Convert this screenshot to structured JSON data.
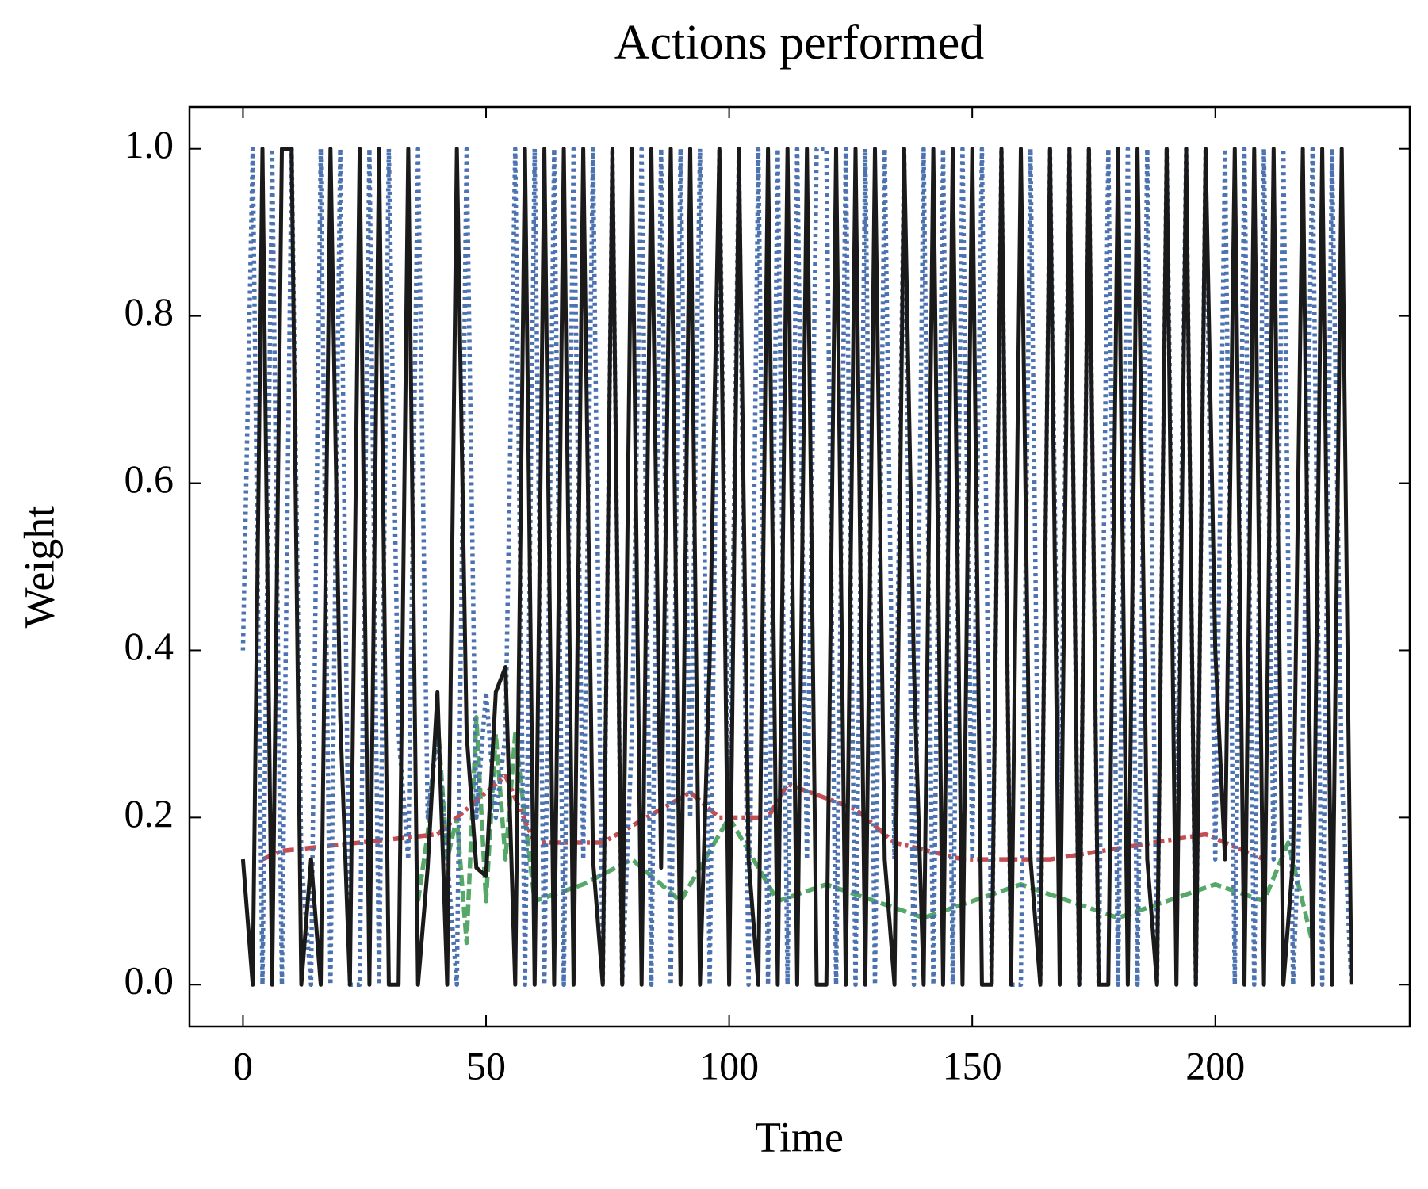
{
  "chart_data": {
    "type": "line",
    "title": "Actions performed",
    "xlabel": "Time",
    "ylabel": "Weight",
    "xlim": [
      -11,
      240
    ],
    "xticks": [
      0,
      50,
      100,
      150,
      200
    ],
    "ylim": [
      -0.05,
      1.05
    ],
    "yticks": [
      {
        "value": 0,
        "label": "0.0"
      },
      {
        "value": 0.2,
        "label": "0.2"
      },
      {
        "value": 0.4,
        "label": "0.4"
      },
      {
        "value": 0.6,
        "label": "0.6"
      },
      {
        "value": 0.8,
        "label": "0.8"
      },
      {
        "value": 1,
        "label": "1.0"
      }
    ],
    "grid": false,
    "series": [
      {
        "color": "#55a868",
        "linestyle": "dashed",
        "x": [
          36,
          38,
          40,
          42,
          44,
          46,
          48,
          50,
          52,
          54,
          56,
          58,
          60,
          70,
          80,
          90,
          100,
          110,
          120,
          130,
          140,
          150,
          160,
          170,
          180,
          190,
          200,
          210,
          215,
          220
        ],
        "values": [
          0.1,
          0.18,
          0.32,
          0.15,
          0.2,
          0.05,
          0.32,
          0.1,
          0.3,
          0.15,
          0.3,
          0.2,
          0.1,
          0.12,
          0.15,
          0.1,
          0.2,
          0.1,
          0.12,
          0.1,
          0.08,
          0.1,
          0.12,
          0.1,
          0.08,
          0.1,
          0.12,
          0.1,
          0.17,
          0.05
        ]
      },
      {
        "color": "#c44e52",
        "linestyle": "dashdot",
        "x": [
          4,
          8,
          40,
          54,
          60,
          74,
          92,
          98,
          108,
          112,
          126,
          134,
          148,
          166,
          198,
          210
        ],
        "values": [
          0.15,
          0.16,
          0.18,
          0.25,
          0.17,
          0.17,
          0.23,
          0.2,
          0.2,
          0.24,
          0.21,
          0.17,
          0.15,
          0.15,
          0.18,
          0.15
        ]
      },
      {
        "color": "#4c72b0",
        "linestyle": "dotted",
        "x": [
          0,
          2,
          4,
          6,
          8,
          10,
          12,
          14,
          16,
          18,
          20,
          22,
          24,
          26,
          28,
          30,
          32,
          34,
          36,
          38,
          40,
          42,
          44,
          46,
          48,
          50,
          52,
          54,
          56,
          58,
          60,
          62,
          64,
          66,
          68,
          70,
          72,
          74,
          76,
          78,
          80,
          82,
          84,
          86,
          88,
          90,
          92,
          94,
          96,
          98,
          100,
          102,
          104,
          106,
          108,
          110,
          112,
          114,
          116,
          118,
          120,
          122,
          124,
          126,
          128,
          130,
          132,
          134,
          136,
          138,
          140,
          142,
          144,
          146,
          148,
          150,
          152,
          154,
          156,
          158,
          160,
          162,
          164,
          166,
          168,
          170,
          172,
          174,
          176,
          178,
          180,
          182,
          184,
          186,
          188,
          190,
          192,
          194,
          196,
          198,
          200,
          202,
          204,
          206,
          208,
          210,
          212,
          214,
          216,
          218,
          220,
          222,
          224,
          226,
          228
        ],
        "values": [
          0.4,
          1,
          0,
          1,
          0,
          1,
          0.15,
          0,
          1,
          0,
          1,
          0,
          0,
          1,
          0,
          1,
          0.3,
          0.15,
          1,
          0.2,
          0.3,
          0.15,
          0,
          1,
          0.2,
          0.35,
          0.2,
          0.3,
          1,
          0,
          1,
          0,
          1,
          0,
          1,
          0.15,
          1,
          0,
          1,
          0,
          0.3,
          1,
          0,
          1,
          0,
          1,
          0.2,
          1,
          0,
          1,
          0.15,
          1,
          0,
          1,
          0,
          1,
          0,
          1,
          0.15,
          1,
          1,
          0,
          1,
          0,
          1,
          0,
          1,
          0.15,
          1,
          0,
          1,
          0,
          1,
          0,
          1,
          0.15,
          1,
          0,
          1,
          0,
          0,
          1,
          0,
          1,
          0.15,
          1,
          0,
          1,
          0,
          1,
          0,
          1,
          0,
          1,
          0,
          1,
          0.15,
          1,
          0,
          1,
          0.15,
          1,
          0,
          1,
          0,
          1,
          0.15,
          1,
          0,
          0.3,
          1,
          0,
          1,
          0.25,
          0
        ]
      },
      {
        "color": "#1a1a1a",
        "linestyle": "solid",
        "x": [
          0,
          2,
          4,
          6,
          8,
          10,
          12,
          14,
          16,
          18,
          20,
          22,
          24,
          26,
          28,
          30,
          32,
          34,
          36,
          38,
          40,
          42,
          44,
          46,
          48,
          50,
          52,
          54,
          56,
          58,
          60,
          62,
          64,
          66,
          68,
          70,
          72,
          74,
          76,
          78,
          80,
          82,
          84,
          86,
          88,
          90,
          92,
          94,
          96,
          98,
          100,
          102,
          104,
          106,
          108,
          110,
          112,
          114,
          116,
          118,
          120,
          122,
          124,
          126,
          128,
          130,
          132,
          134,
          136,
          138,
          140,
          142,
          144,
          146,
          148,
          150,
          152,
          154,
          156,
          158,
          160,
          162,
          164,
          166,
          168,
          170,
          172,
          174,
          176,
          178,
          180,
          182,
          184,
          186,
          188,
          190,
          192,
          194,
          196,
          198,
          200,
          202,
          204,
          206,
          208,
          210,
          212,
          214,
          216,
          218,
          220,
          222,
          224,
          226,
          228
        ],
        "values": [
          0.15,
          0,
          1,
          0,
          1,
          1,
          0,
          0.15,
          0,
          1,
          0.32,
          0,
          1,
          0,
          1,
          0,
          0,
          1,
          0,
          0.14,
          0.35,
          0,
          1,
          0.3,
          0.14,
          0.13,
          0.35,
          0.38,
          0,
          1,
          0,
          1,
          0,
          1,
          0,
          1,
          0.15,
          0,
          1,
          0,
          1,
          0,
          1,
          0.14,
          1,
          0,
          1,
          0,
          0.39,
          1,
          0,
          1,
          0.15,
          0,
          1,
          0,
          1,
          0,
          1,
          0,
          0,
          1,
          0,
          1,
          0,
          1,
          0.15,
          0,
          1,
          0.38,
          0,
          1,
          0,
          1,
          0,
          1,
          0,
          0,
          1,
          0,
          1,
          0.15,
          0,
          1,
          0,
          1,
          0,
          1,
          0,
          0,
          1,
          0,
          1,
          0.15,
          0,
          1,
          0,
          1,
          0,
          1,
          0.4,
          0.15,
          1,
          0,
          1,
          0,
          1,
          0,
          0.15,
          1,
          0,
          1,
          0,
          1,
          0
        ]
      }
    ]
  }
}
